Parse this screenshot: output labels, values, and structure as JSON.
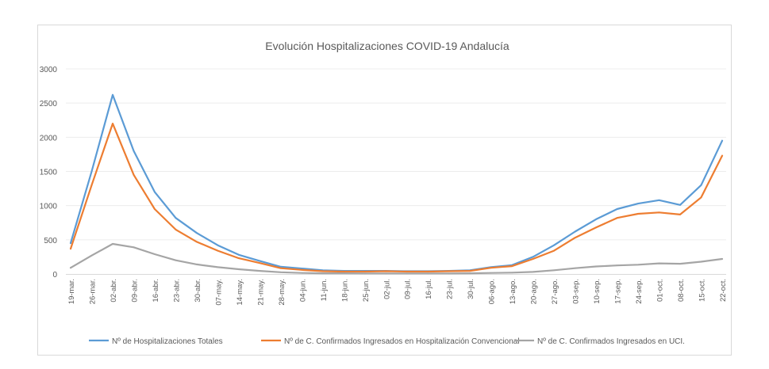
{
  "chart_data": {
    "type": "line",
    "title": "Evolución Hospitalizaciones COVID-19 Andalucía",
    "xlabel": "",
    "ylabel": "",
    "ylim": [
      0,
      3000
    ],
    "yticks": [
      "0",
      "500",
      "1000",
      "1500",
      "2000",
      "2500",
      "3000"
    ],
    "grid": "horizontal",
    "legend_position": "bottom",
    "x": [
      "19-mar.",
      "26-mar.",
      "02-abr.",
      "09-abr.",
      "16-abr.",
      "23-abr.",
      "30-abr.",
      "07-may.",
      "14-may.",
      "21-may.",
      "28-may.",
      "04-jun.",
      "11-jun.",
      "18-jun.",
      "25-jun.",
      "02-jul.",
      "09-jul.",
      "16-jul.",
      "23-jul.",
      "30-jul.",
      "06-ago.",
      "13-ago.",
      "20-ago.",
      "27-ago.",
      "03-sep.",
      "10-sep.",
      "17-sep.",
      "24-sep.",
      "01-oct.",
      "08-oct.",
      "15-oct.",
      "22-oct."
    ],
    "series": [
      {
        "name": "Nº de Hospitalizaciones Totales",
        "color": "#5b9bd5",
        "values": [
          450,
          1500,
          2620,
          1800,
          1200,
          820,
          600,
          420,
          280,
          190,
          105,
          80,
          55,
          45,
          45,
          45,
          40,
          40,
          45,
          55,
          100,
          130,
          250,
          420,
          620,
          800,
          950,
          1030,
          1080,
          1010,
          1300,
          1950
        ]
      },
      {
        "name": "Nº de C. Confirmados Ingresados en Hospitalización Convencional",
        "color": "#ed7d31",
        "values": [
          370,
          1300,
          2200,
          1450,
          950,
          650,
          470,
          340,
          230,
          160,
          85,
          60,
          40,
          35,
          35,
          40,
          35,
          35,
          40,
          45,
          90,
          115,
          220,
          340,
          530,
          680,
          820,
          880,
          900,
          870,
          1120,
          1730
        ]
      },
      {
        "name": "Nº de C. Confirmados Ingresados en UCI.",
        "color": "#a5a5a5",
        "values": [
          90,
          270,
          440,
          390,
          290,
          200,
          140,
          100,
          70,
          45,
          25,
          15,
          10,
          10,
          8,
          8,
          8,
          8,
          8,
          10,
          15,
          20,
          30,
          55,
          85,
          110,
          125,
          135,
          155,
          150,
          180,
          220
        ]
      }
    ]
  }
}
